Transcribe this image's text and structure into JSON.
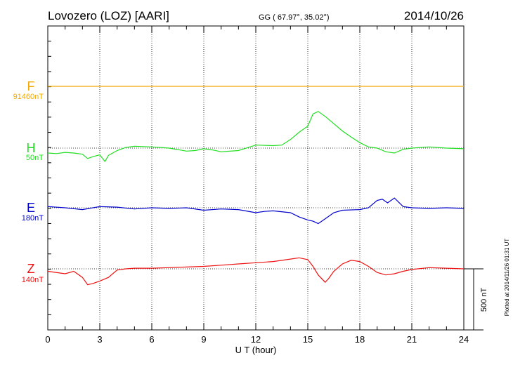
{
  "chart_data": {
    "type": "line",
    "title": "Lovozero (LOZ)  [AARI]",
    "coords": "GG ( 67.97°,  35.02°)",
    "date": "2014/10/26",
    "xlabel": "U T (hour)",
    "xlim": [
      0,
      24
    ],
    "x_ticks": [
      0,
      3,
      6,
      9,
      12,
      15,
      18,
      21,
      24
    ],
    "grid": true,
    "scale_bar": {
      "label": "500 nT",
      "value_nT": 500
    },
    "footer": "Plotted at 2014/11/26 01:31  UT",
    "series": [
      {
        "name": "F",
        "baseline": "91460nT",
        "color": "#f2a900",
        "x": [
          0,
          24
        ],
        "y": [
          0,
          0
        ]
      },
      {
        "name": "H",
        "baseline": "50nT",
        "color": "#22dd22",
        "x": [
          0,
          0.5,
          1,
          1.5,
          2,
          2.3,
          2.6,
          3,
          3.3,
          3.5,
          4,
          4.5,
          5,
          6,
          7,
          8,
          8.5,
          9,
          9.5,
          10,
          11,
          12,
          13,
          13.5,
          14,
          14.5,
          15,
          15.3,
          15.6,
          16,
          16.5,
          17,
          17.5,
          18,
          18.5,
          19,
          19.5,
          20,
          20.5,
          21,
          22,
          23,
          24
        ],
        "y": [
          -40,
          -45,
          -35,
          -40,
          -50,
          -85,
          -70,
          -55,
          -110,
          -60,
          -20,
          5,
          15,
          10,
          0,
          -25,
          -20,
          -5,
          -15,
          -30,
          -20,
          25,
          20,
          25,
          70,
          130,
          180,
          280,
          300,
          260,
          200,
          140,
          90,
          45,
          10,
          0,
          -30,
          -40,
          -10,
          0,
          10,
          0,
          -5
        ]
      },
      {
        "name": "E",
        "baseline": "180nT",
        "color": "#0000cc",
        "x": [
          0,
          1,
          2,
          3,
          4,
          5,
          6,
          7,
          8,
          9,
          10,
          11,
          12,
          12.5,
          13,
          14,
          14.5,
          15,
          15.3,
          15.6,
          16,
          16.5,
          17,
          18,
          18.5,
          19,
          19.3,
          19.6,
          20,
          20.5,
          21,
          22,
          23,
          24
        ],
        "y": [
          10,
          0,
          -15,
          10,
          5,
          -10,
          0,
          -5,
          0,
          -20,
          -10,
          -15,
          -40,
          -30,
          -25,
          -40,
          -75,
          -100,
          -110,
          -130,
          -90,
          -40,
          -20,
          -15,
          0,
          60,
          70,
          40,
          80,
          10,
          0,
          -5,
          0,
          -5
        ]
      },
      {
        "name": "Z",
        "baseline": "140nT",
        "color": "#ee1111",
        "x": [
          0,
          1,
          1.5,
          2,
          2.3,
          2.6,
          3,
          3.5,
          4,
          4.5,
          5,
          6,
          7,
          8,
          9,
          10,
          11,
          12,
          13,
          14,
          14.5,
          15,
          15.3,
          15.6,
          16,
          16.2,
          16.5,
          17,
          17.5,
          18,
          18.5,
          19,
          19.5,
          20,
          20.5,
          21,
          22,
          23,
          24
        ],
        "y": [
          -20,
          -40,
          -20,
          -70,
          -130,
          -120,
          -100,
          -70,
          -10,
          0,
          5,
          5,
          10,
          15,
          20,
          30,
          40,
          50,
          60,
          80,
          90,
          75,
          20,
          -50,
          -110,
          -80,
          -20,
          40,
          70,
          60,
          20,
          -30,
          -50,
          -40,
          -20,
          -5,
          10,
          5,
          0
        ]
      }
    ]
  }
}
